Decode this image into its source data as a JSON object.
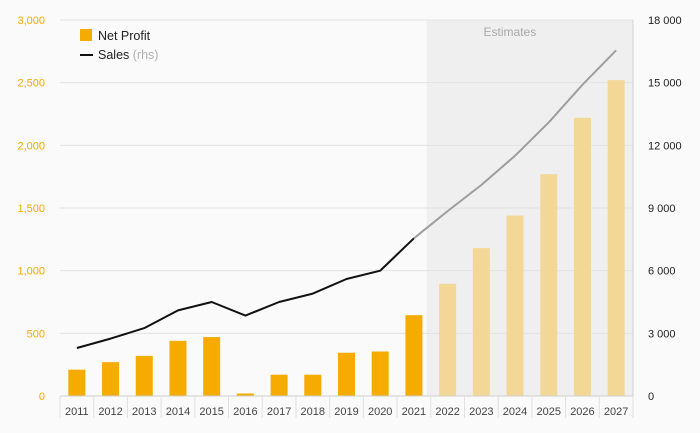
{
  "chart_data": {
    "type": "bar+line",
    "categories": [
      "2011",
      "2012",
      "2013",
      "2014",
      "2015",
      "2016",
      "2017",
      "2018",
      "2019",
      "2020",
      "2021",
      "2022",
      "2023",
      "2024",
      "2025",
      "2026",
      "2027"
    ],
    "estimates_start": "2022",
    "estimates_label": "Estimates",
    "series": [
      {
        "name": "Net Profit",
        "type": "bar",
        "axis": "left",
        "color": "#f5ab00",
        "estimate_color": "#f3d797",
        "values": [
          210,
          270,
          320,
          440,
          470,
          20,
          170,
          170,
          345,
          355,
          645,
          895,
          1180,
          1440,
          1770,
          2220,
          2520
        ]
      },
      {
        "name": "Sales",
        "name_suffix": "(rhs)",
        "type": "line",
        "axis": "right",
        "color": "#111111",
        "estimate_color": "#9e9e9e",
        "values": [
          2300,
          2750,
          3250,
          4100,
          4500,
          3850,
          4500,
          4900,
          5600,
          6000,
          7550,
          8850,
          10100,
          11500,
          13100,
          14900,
          16550
        ]
      }
    ],
    "y_left": {
      "lim": [
        0,
        3000
      ],
      "ticks": [
        "0",
        "500",
        "1,000",
        "1,500",
        "2,000",
        "2,500",
        "3,000"
      ],
      "values": [
        0,
        500,
        1000,
        1500,
        2000,
        2500,
        3000
      ]
    },
    "y_right": {
      "lim": [
        0,
        18000
      ],
      "ticks": [
        "0",
        "3 000",
        "6 000",
        "9 000",
        "12 000",
        "15 000",
        "18 000"
      ],
      "values": [
        0,
        3000,
        6000,
        9000,
        12000,
        15000,
        18000
      ]
    },
    "grid": true,
    "legend_position": "top-left",
    "colors": {
      "left_axis": "#f5a800",
      "estimate_shade": "#efefef"
    }
  }
}
